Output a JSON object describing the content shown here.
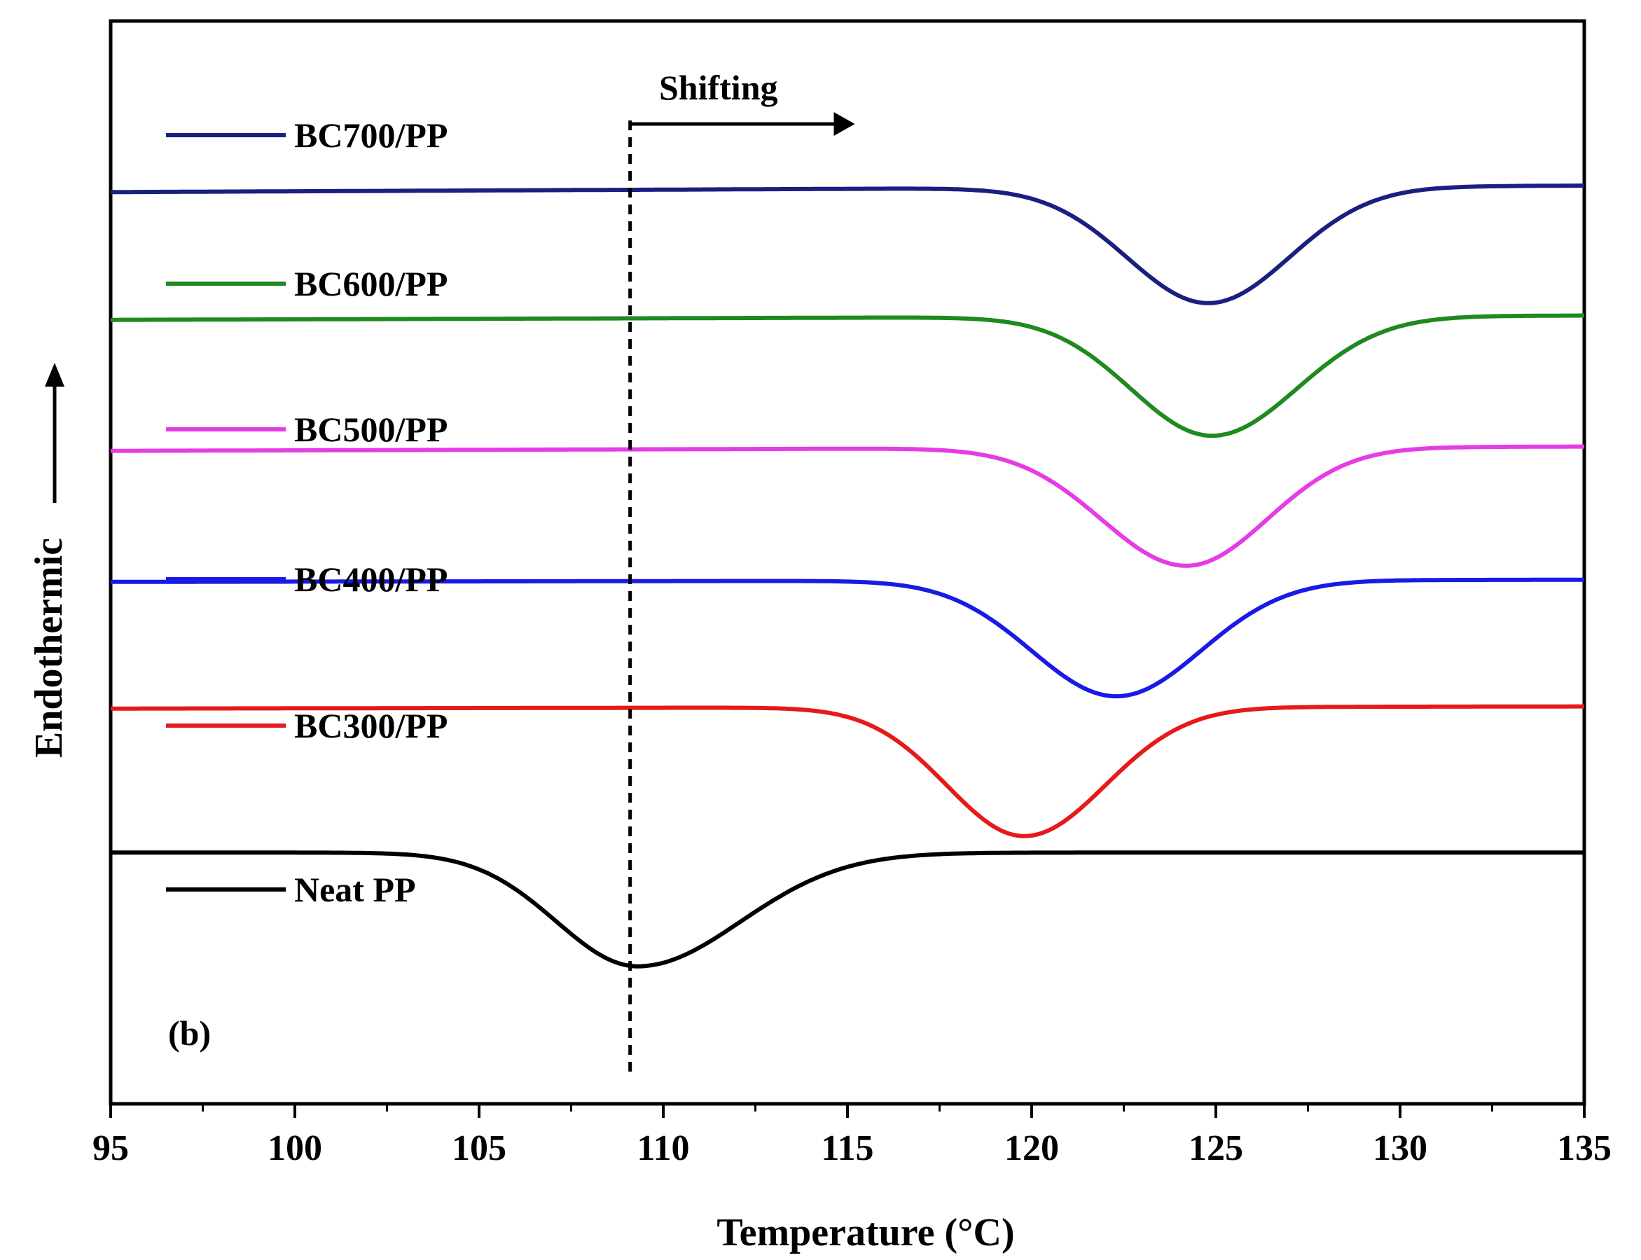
{
  "chart_data": {
    "type": "line",
    "title": "",
    "panel_label": "(b)",
    "xlabel": "Temperature (°C)",
    "ylabel": "Endothermic",
    "xlim": [
      95,
      135
    ],
    "xticks": [
      95,
      100,
      105,
      110,
      115,
      120,
      125,
      130,
      135
    ],
    "ylim": [
      0,
      1
    ],
    "y_ticks_shown": false,
    "grid": false,
    "legend_placement": "left, stacked labels above each curve",
    "marker_line": {
      "x": 109.1,
      "style": "dashed"
    },
    "annotation": {
      "text": "Shifting",
      "arrow_from_x": 109.1,
      "arrow_to_x": 115.2,
      "arrow_direction": "right"
    },
    "series": [
      {
        "name": "BC700/PP",
        "color": "#1a1f80",
        "baseline": 0.845,
        "peak_x": 124.8,
        "peak_y": 0.738,
        "left_width": 2.2,
        "right_width": 2.2,
        "drift": 0.003
      },
      {
        "name": "BC600/PP",
        "color": "#1f8a1f",
        "baseline": 0.726,
        "peak_x": 124.9,
        "peak_y": 0.616,
        "left_width": 2.2,
        "right_width": 2.3,
        "drift": 0.002
      },
      {
        "name": "BC500/PP",
        "color": "#e63ce6",
        "baseline": 0.605,
        "peak_x": 124.2,
        "peak_y": 0.496,
        "left_width": 2.3,
        "right_width": 2.2,
        "drift": 0.002
      },
      {
        "name": "BC400/PP",
        "color": "#1a1ae6",
        "baseline": 0.483,
        "peak_x": 122.3,
        "peak_y": 0.376,
        "left_width": 2.3,
        "right_width": 2.3,
        "drift": 0.001
      },
      {
        "name": "BC300/PP",
        "color": "#e61a1a",
        "baseline": 0.366,
        "peak_x": 119.8,
        "peak_y": 0.247,
        "left_width": 2.1,
        "right_width": 2.2,
        "drift": 0.001
      },
      {
        "name": "Neat PP",
        "color": "#000000",
        "baseline": 0.232,
        "peak_x": 109.3,
        "peak_y": 0.127,
        "left_width": 2.2,
        "right_width": 2.8,
        "drift": 0.0
      }
    ]
  }
}
